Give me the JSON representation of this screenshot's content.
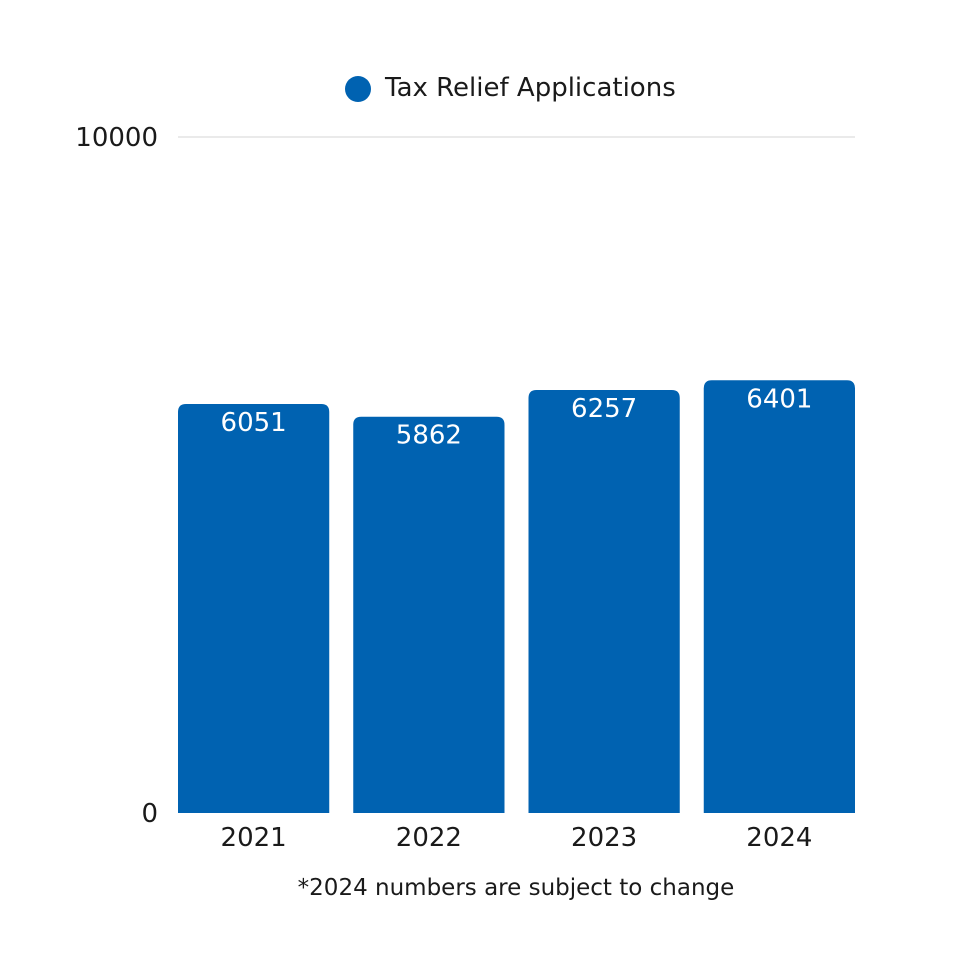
{
  "chart_data": {
    "type": "bar",
    "categories": [
      "2021",
      "2022",
      "2023",
      "2024"
    ],
    "series": [
      {
        "name": "Tax Relief Applications",
        "values": [
          6051,
          5862,
          6257,
          6401
        ],
        "color": "#0062b1"
      }
    ],
    "ylim": [
      0,
      10000
    ],
    "yticks": [
      "0",
      "10000"
    ],
    "grid": true,
    "legend_position": "top-center",
    "footnote": "*2024 numbers are subject to change"
  }
}
